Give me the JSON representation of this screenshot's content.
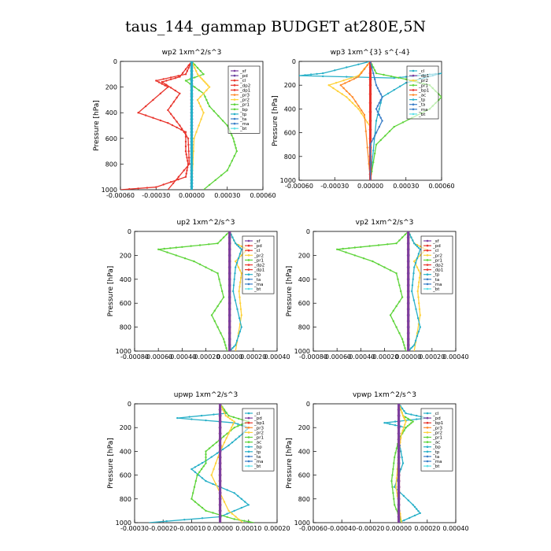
{
  "figure_title": "taus_144_gammap  BUDGET at280E,5N",
  "chart_data": [
    {
      "type": "line",
      "title": "wp2   1xm^2/s^3",
      "ylabel": "Pressure [hPa]",
      "xlim": [
        -0.0006,
        0.0006
      ],
      "ylim": [
        0,
        1000
      ],
      "xticks": [
        "-0.00060",
        "-0.00030",
        "0.00000",
        "0.00030",
        "0.00060"
      ],
      "yticks": [
        "0",
        "200",
        "400",
        "600",
        "800",
        "1000"
      ],
      "legend_position": "top-right",
      "series": [
        {
          "name": "_sf",
          "color": "#7b3fa0",
          "x": [
            0,
            0,
            0,
            0,
            0,
            0,
            0,
            0,
            0,
            0,
            0
          ],
          "y": [
            0,
            100,
            200,
            300,
            400,
            500,
            600,
            700,
            800,
            900,
            1000
          ]
        },
        {
          "name": "_pd",
          "color": "#e8342c",
          "x": [
            0.0,
            -5e-05,
            -0.0003,
            -0.0002,
            -0.00045,
            -0.0002,
            -5e-05,
            -5e-05,
            -3e-05,
            -5e-05,
            -0.0003,
            -0.0006
          ],
          "y": [
            0,
            100,
            150,
            200,
            400,
            480,
            550,
            700,
            800,
            900,
            980,
            1000
          ]
        },
        {
          "name": "_ac",
          "color": "#e8342c",
          "x": [
            0.0,
            -0.0001,
            -0.00025,
            -0.0001,
            -0.0002,
            -0.0001,
            -3e-05,
            -2e-05,
            -0.0002
          ],
          "y": [
            0,
            120,
            160,
            250,
            380,
            500,
            600,
            800,
            1000
          ]
        },
        {
          "name": "_pr1",
          "color": "#5ed43a",
          "x": [
            0.0,
            0.0001,
            -5e-05,
            0.0001,
            0.00015,
            0.0003,
            0.00035,
            0.00038,
            0.0003,
            0.0001
          ],
          "y": [
            0,
            100,
            150,
            250,
            350,
            500,
            600,
            700,
            850,
            1000
          ]
        },
        {
          "name": "_pr2",
          "color": "#ffd23a",
          "x": [
            0.0,
            5e-05,
            0.0001,
            0.00015,
            5e-05,
            0.0001,
            2e-05,
            0.0
          ],
          "y": [
            0,
            100,
            150,
            200,
            300,
            400,
            600,
            1000
          ]
        },
        {
          "name": "_bt",
          "color": "#27b0c8",
          "x": [
            0,
            0,
            0,
            0,
            0,
            0,
            0
          ],
          "y": [
            0,
            150,
            300,
            500,
            700,
            900,
            1000
          ]
        }
      ],
      "legend_entries": [
        "_sf",
        "_pd",
        "_cl",
        "_dp2",
        "_dp1",
        "_pr3",
        "_pr2",
        "_pr1",
        "_bp",
        "_tp",
        "_ta",
        "_ma",
        "_bt"
      ],
      "legend_colors": [
        "#7b3fa0",
        "#6a3fa0",
        "#e8342c",
        "#e8342c",
        "#e8342c",
        "#ff8a2a",
        "#ffd23a",
        "#5ed43a",
        "#5ed43a",
        "#27b0c8",
        "#3a7ec8",
        "#3a7ec8",
        "#5ee0e8"
      ]
    },
    {
      "type": "line",
      "title": "wp3   1xm^{3} s^{-4}",
      "ylabel": "Pressure [hPa]",
      "xlim": [
        -0.0006,
        0.0006
      ],
      "ylim": [
        0,
        1000
      ],
      "xticks": [
        "-0.00060",
        "-0.00030",
        "0.00000",
        "0.00030",
        "0.00060"
      ],
      "yticks": [
        "0",
        "200",
        "400",
        "600",
        "800",
        "1000"
      ],
      "legend_position": "top-right",
      "series": [
        {
          "name": "_cl",
          "color": "#27b0c8",
          "x": [
            0.0,
            -0.0004,
            -0.0006,
            0.0002,
            0.0004,
            0.0006,
            0.0003,
            0.0001,
            5e-05,
            0.0
          ],
          "y": [
            0,
            100,
            120,
            140,
            120,
            100,
            180,
            300,
            500,
            1000
          ]
        },
        {
          "name": "_pr1",
          "color": "#5ed43a",
          "x": [
            0.0,
            5e-05,
            0.0003,
            0.0005,
            0.0006,
            0.0005,
            0.0002,
            5e-05,
            0.0
          ],
          "y": [
            0,
            100,
            150,
            200,
            300,
            400,
            550,
            700,
            1000
          ]
        },
        {
          "name": "_pr2",
          "color": "#ffd23a",
          "x": [
            0.0,
            -0.0001,
            -0.00035,
            -0.0002,
            -0.0001,
            0.0,
            0.0
          ],
          "y": [
            0,
            120,
            200,
            300,
            400,
            550,
            1000
          ]
        },
        {
          "name": "_ac",
          "color": "#ff8a2a",
          "x": [
            0.0,
            -0.0001,
            -0.00025,
            -0.00015,
            -5e-05,
            0.0
          ],
          "y": [
            0,
            130,
            200,
            300,
            450,
            1000
          ]
        },
        {
          "name": "_bt",
          "color": "#e8342c",
          "x": [
            0,
            0,
            0,
            0,
            0
          ],
          "y": [
            0,
            200,
            500,
            800,
            1000
          ]
        },
        {
          "name": "_ta",
          "color": "#3a7ec8",
          "x": [
            0.0,
            5e-05,
            0.0001,
            5e-05,
            0.0001,
            0.0,
            0.0
          ],
          "y": [
            0,
            200,
            300,
            400,
            500,
            700,
            1000
          ]
        }
      ],
      "legend_entries": [
        "_cl",
        "_dp1",
        "_pr2",
        "_pr1",
        "_bp1",
        "_ac",
        "_tp",
        "_ta",
        "_ma",
        "_bt"
      ],
      "legend_colors": [
        "#27b0c8",
        "#7b3fa0",
        "#ffd23a",
        "#5ed43a",
        "#e8342c",
        "#ff8a2a",
        "#27b0c8",
        "#3a7ec8",
        "#3a7ec8",
        "#5ee0e8"
      ]
    },
    {
      "type": "line",
      "title": "up2   1xm^2/s^3",
      "ylabel": "Pressure [hPa]",
      "xlim": [
        -0.0008,
        0.0004
      ],
      "ylim": [
        0,
        1000
      ],
      "xticks": [
        "-0.00080",
        "-0.00060",
        "-0.00040",
        "-0.00020",
        "0.00000",
        "0.00020",
        "0.00040"
      ],
      "yticks": [
        "0",
        "200",
        "400",
        "600",
        "800",
        "1000"
      ],
      "legend_position": "top-right",
      "series": [
        {
          "name": "_pr1",
          "color": "#5ed43a",
          "x": [
            0.0,
            -0.0001,
            -0.0004,
            -0.0006,
            -0.0003,
            -0.0001,
            -5e-05,
            -0.00015,
            -5e-05,
            -2e-05
          ],
          "y": [
            0,
            100,
            130,
            150,
            250,
            350,
            550,
            700,
            900,
            1000
          ]
        },
        {
          "name": "_pr2",
          "color": "#ffd23a",
          "x": [
            0.0,
            5e-05,
            0.00015,
            5e-05,
            0.0001,
            8e-05,
            0.0001,
            5e-05
          ],
          "y": [
            0,
            100,
            150,
            250,
            350,
            500,
            700,
            1000
          ]
        },
        {
          "name": "_tp",
          "color": "#27b0c8",
          "x": [
            0.0,
            5e-05,
            0.0001,
            5e-05,
            3e-05,
            0.0001,
            5e-05,
            0.0
          ],
          "y": [
            0,
            100,
            150,
            300,
            500,
            800,
            950,
            1000
          ]
        },
        {
          "name": "_pd",
          "color": "#e8342c",
          "x": [
            0,
            0,
            0,
            0,
            0,
            0
          ],
          "y": [
            0,
            200,
            400,
            600,
            800,
            1000
          ]
        },
        {
          "name": "_sf",
          "color": "#7b3fa0",
          "x": [
            0,
            0,
            0,
            0,
            0,
            0
          ],
          "y": [
            0,
            200,
            400,
            600,
            800,
            1000
          ]
        }
      ],
      "legend_entries": [
        "_sf",
        "_pd",
        "_cl",
        "_pr2",
        "_pr1",
        "_dp2",
        "_dp1",
        "_tp",
        "_ta",
        "_ma",
        "_bt"
      ],
      "legend_colors": [
        "#7b3fa0",
        "#e8342c",
        "#e8342c",
        "#ffd23a",
        "#5ed43a",
        "#e8342c",
        "#e8342c",
        "#27b0c8",
        "#3a7ec8",
        "#3a7ec8",
        "#5ee0e8"
      ]
    },
    {
      "type": "line",
      "title": "vp2   1xm^2/s^3",
      "ylabel": "Pressure [hPa]",
      "xlim": [
        -0.0008,
        0.0004
      ],
      "ylim": [
        0,
        1000
      ],
      "xticks": [
        "-0.00080",
        "-0.00060",
        "-0.00040",
        "-0.00020",
        "0.00000",
        "0.00020",
        "0.00040"
      ],
      "yticks": [
        "0",
        "200",
        "400",
        "600",
        "800",
        "1000"
      ],
      "legend_position": "top-right",
      "series": [
        {
          "name": "_pr1",
          "color": "#5ed43a",
          "x": [
            0.0,
            -0.0001,
            -0.0004,
            -0.0006,
            -0.0003,
            -0.0001,
            -5e-05,
            -0.00015,
            -5e-05,
            -2e-05
          ],
          "y": [
            0,
            100,
            130,
            150,
            250,
            350,
            550,
            700,
            900,
            1000
          ]
        },
        {
          "name": "_pr2",
          "color": "#ffd23a",
          "x": [
            0.0,
            5e-05,
            0.00015,
            5e-05,
            0.0001,
            8e-05,
            0.0001,
            5e-05
          ],
          "y": [
            0,
            100,
            150,
            250,
            350,
            500,
            700,
            1000
          ]
        },
        {
          "name": "_tp",
          "color": "#27b0c8",
          "x": [
            0.0,
            5e-05,
            0.0001,
            5e-05,
            3e-05,
            0.0001,
            5e-05,
            0.0
          ],
          "y": [
            0,
            100,
            150,
            300,
            500,
            800,
            950,
            1000
          ]
        },
        {
          "name": "_pd",
          "color": "#e8342c",
          "x": [
            0,
            0,
            0,
            0,
            0,
            0
          ],
          "y": [
            0,
            200,
            400,
            600,
            800,
            1000
          ]
        },
        {
          "name": "_sf",
          "color": "#7b3fa0",
          "x": [
            0,
            0,
            0,
            0,
            0,
            0
          ],
          "y": [
            0,
            200,
            400,
            600,
            800,
            1000
          ]
        }
      ],
      "legend_entries": [
        "_sf",
        "_pd",
        "_cl",
        "_pr2",
        "_pr1",
        "_dp2",
        "_dp1",
        "_tp",
        "_ta",
        "_ma",
        "_bt"
      ],
      "legend_colors": [
        "#7b3fa0",
        "#e8342c",
        "#e8342c",
        "#ffd23a",
        "#5ed43a",
        "#e8342c",
        "#e8342c",
        "#27b0c8",
        "#3a7ec8",
        "#3a7ec8",
        "#5ee0e8"
      ]
    },
    {
      "type": "line",
      "title": "upwp   1xm^2/s^3",
      "ylabel": "Pressure [hPa]",
      "xlim": [
        -0.0003,
        0.0002
      ],
      "ylim": [
        0,
        1000
      ],
      "xticks": [
        "-0.00030",
        "-0.00020",
        "-0.00010",
        "0.00000",
        "0.00010",
        "0.00020"
      ],
      "yticks": [
        "0",
        "200",
        "400",
        "600",
        "800",
        "1000"
      ],
      "legend_position": "top-right",
      "series": [
        {
          "name": "_tp",
          "color": "#27b0c8",
          "x": [
            0.0,
            2e-05,
            -0.00015,
            5e-05,
            0.0001,
            8e-05,
            3e-05,
            -5e-05,
            -0.0001,
            -5e-05,
            5e-05,
            0.0001,
            0.0,
            -0.00025
          ],
          "y": [
            0,
            80,
            120,
            160,
            200,
            250,
            350,
            480,
            550,
            650,
            750,
            850,
            950,
            1000
          ]
        },
        {
          "name": "_pr1",
          "color": "#5ed43a",
          "x": [
            0.0,
            3e-05,
            0.0001,
            5e-05,
            0.0,
            -5e-05,
            -5e-05,
            -8e-05,
            -0.0001,
            -5e-05,
            5e-05,
            0.00012
          ],
          "y": [
            0,
            100,
            150,
            200,
            300,
            400,
            500,
            600,
            800,
            900,
            970,
            1000
          ]
        },
        {
          "name": "_pr2",
          "color": "#ffd23a",
          "x": [
            0.0,
            2e-05,
            5e-05,
            3e-05,
            0.0,
            -3e-05,
            3e-05,
            8e-05
          ],
          "y": [
            0,
            100,
            150,
            250,
            400,
            600,
            900,
            1000
          ]
        },
        {
          "name": "_pd",
          "color": "#e8342c",
          "x": [
            0,
            0,
            0,
            0,
            0,
            0
          ],
          "y": [
            0,
            200,
            400,
            600,
            800,
            1000
          ]
        },
        {
          "name": "_sf",
          "color": "#7b3fa0",
          "x": [
            0,
            0,
            0,
            0,
            0,
            0
          ],
          "y": [
            0,
            200,
            400,
            600,
            800,
            1000
          ]
        }
      ],
      "legend_entries": [
        "_cl",
        "_pd",
        "_bp1",
        "_pr3",
        "_pr2",
        "_pr1",
        "_ac",
        "_bp",
        "_tp",
        "_ta",
        "_ma",
        "_bt"
      ],
      "legend_colors": [
        "#27b0c8",
        "#7b3fa0",
        "#e8342c",
        "#ff8a2a",
        "#ffd23a",
        "#5ed43a",
        "#5ed43a",
        "#27b0c8",
        "#27b0c8",
        "#3a7ec8",
        "#3a7ec8",
        "#5ee0e8"
      ]
    },
    {
      "type": "line",
      "title": "vpwp   1xm^2/s^3",
      "ylabel": "Pressure [hPa]",
      "xlim": [
        -0.0006,
        0.0004
      ],
      "ylim": [
        0,
        1000
      ],
      "xticks": [
        "-0.00060",
        "-0.00040",
        "-0.00020",
        "0.00000",
        "0.00020",
        "0.00040"
      ],
      "yticks": [
        "0",
        "200",
        "400",
        "600",
        "800",
        "1000"
      ],
      "legend_position": "top-right",
      "series": [
        {
          "name": "_tp",
          "color": "#27b0c8",
          "x": [
            0.0,
            5e-05,
            0.0002,
            -0.0001,
            5e-05,
            0.0,
            3e-05,
            -3e-05,
            0.0001,
            0.00015,
            0.0
          ],
          "y": [
            0,
            80,
            120,
            160,
            200,
            300,
            500,
            700,
            850,
            920,
            1000
          ]
        },
        {
          "name": "_pr1",
          "color": "#5ed43a",
          "x": [
            0.0,
            3e-05,
            0.0001,
            5e-05,
            0.0,
            -3e-05,
            -5e-05,
            -3e-05,
            2e-05
          ],
          "y": [
            0,
            100,
            150,
            200,
            300,
            450,
            650,
            850,
            1000
          ]
        },
        {
          "name": "_pr2",
          "color": "#ffd23a",
          "x": [
            0.0,
            3e-05,
            5e-05,
            2e-05,
            0.0,
            -2e-05,
            2e-05
          ],
          "y": [
            0,
            100,
            150,
            250,
            400,
            700,
            1000
          ]
        },
        {
          "name": "_pd",
          "color": "#e8342c",
          "x": [
            0,
            0,
            0,
            0,
            0,
            0
          ],
          "y": [
            0,
            200,
            400,
            600,
            800,
            1000
          ]
        },
        {
          "name": "_sf",
          "color": "#7b3fa0",
          "x": [
            0,
            0,
            0,
            0,
            0,
            0
          ],
          "y": [
            0,
            200,
            400,
            600,
            800,
            1000
          ]
        }
      ],
      "legend_entries": [
        "_cl",
        "_pd",
        "_bp1",
        "_pr3",
        "_pr2",
        "_pr1",
        "_ac",
        "_bp",
        "_tp",
        "_ta",
        "_ma",
        "_bt"
      ],
      "legend_colors": [
        "#27b0c8",
        "#7b3fa0",
        "#e8342c",
        "#ff8a2a",
        "#ffd23a",
        "#5ed43a",
        "#5ed43a",
        "#27b0c8",
        "#27b0c8",
        "#3a7ec8",
        "#3a7ec8",
        "#5ee0e8"
      ]
    }
  ]
}
